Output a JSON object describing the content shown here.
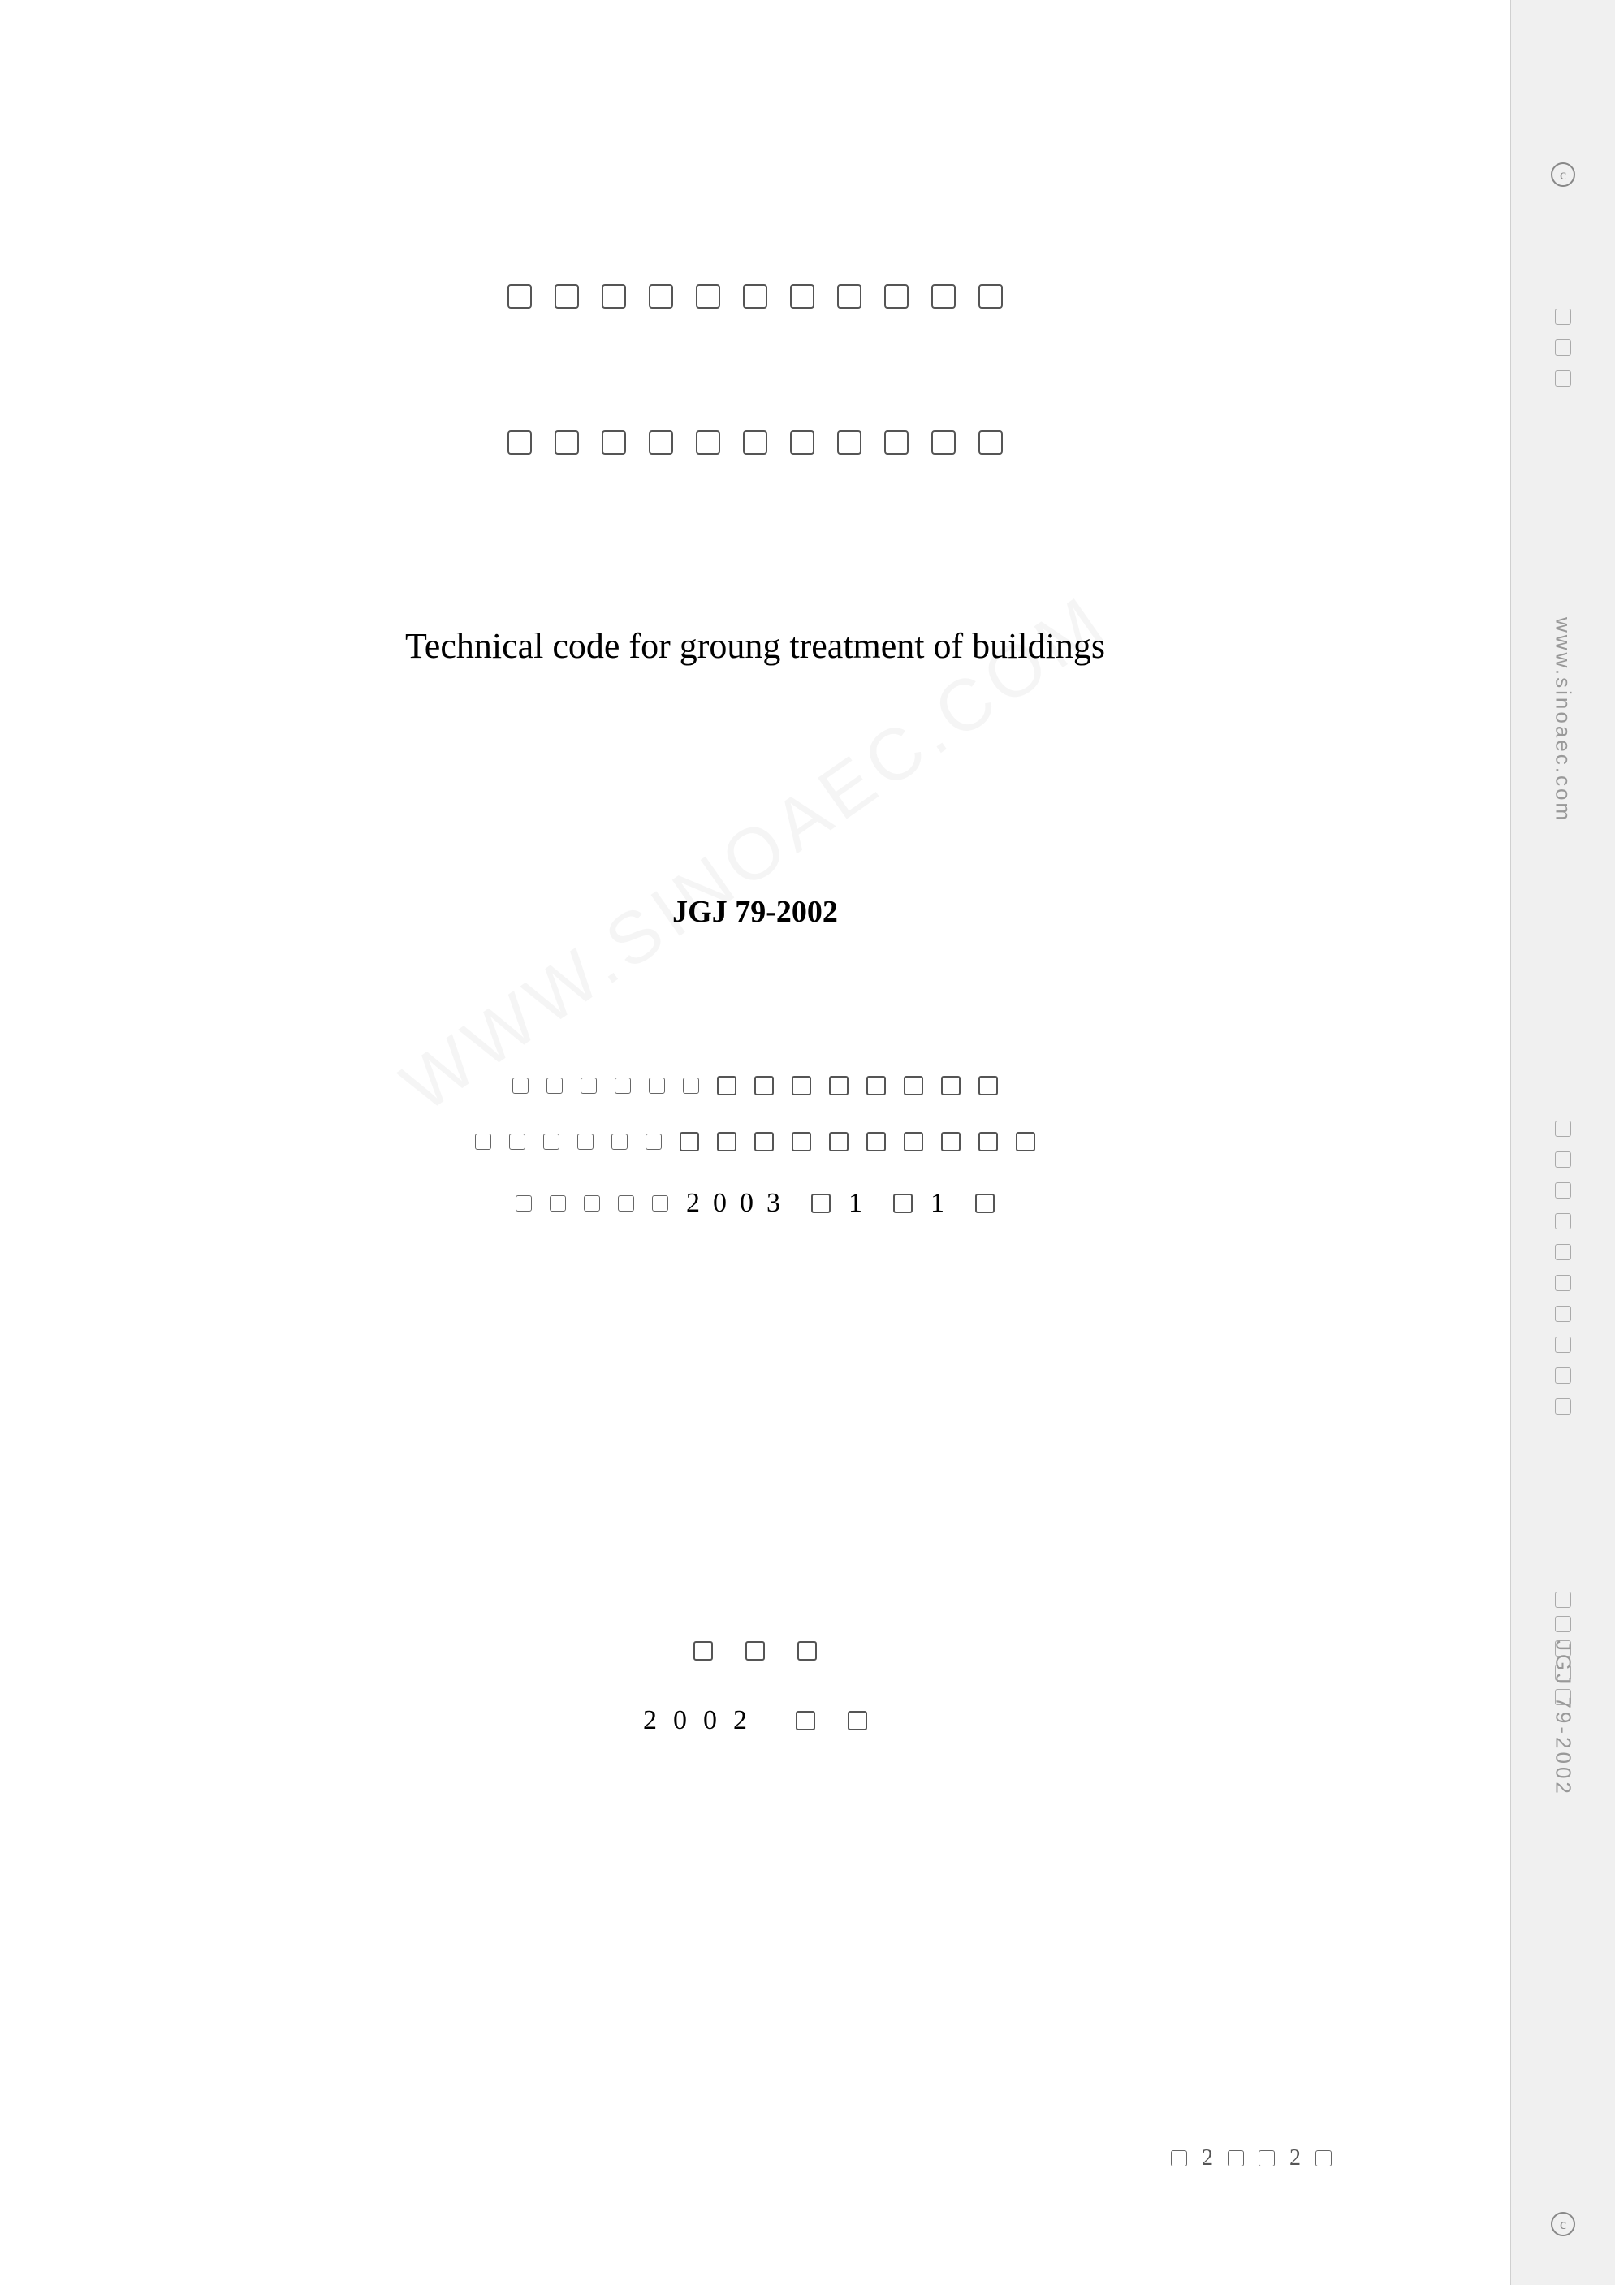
{
  "title_row1_count": 11,
  "title_row2_count": 11,
  "english_title": "Technical code for groung treatment of buildings",
  "code_number": "JGJ 79-2002",
  "info_row1_prefix_boxes": 6,
  "info_row1_suffix_boxes": 8,
  "info_row2_prefix_boxes": 6,
  "info_row2_suffix_boxes": 10,
  "info_row3_prefix_boxes": 5,
  "date_year": "2003",
  "date_month": "1",
  "date_day": "1",
  "footer_boxes": 3,
  "footer_year": "2002",
  "footer_suffix_boxes": 2,
  "page_num_1": "2",
  "page_num_2": "2",
  "sidebar_url": "www.sinoaec.com",
  "sidebar_code": "JGJ 79-2002",
  "sidebar_top_boxes": 3,
  "sidebar_mid_boxes": 10,
  "sidebar_pre_code_boxes": 5,
  "watermark": "WWW.SINOAEC.COM",
  "colors": {
    "page_bg": "#ffffff",
    "body_bg": "#e8e8e8",
    "sidebar_bg": "#f0f0f0",
    "text": "#000000",
    "box_border": "#555555",
    "sidebar_text": "#999999"
  }
}
